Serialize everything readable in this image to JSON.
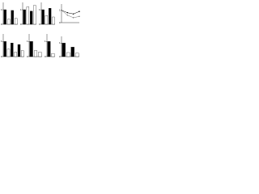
{
  "chart_data": [
    {
      "type": "bar",
      "values": [
        1.0,
        0.35,
        0.95,
        0.4
      ],
      "colors": [
        "#000000",
        "#ffffff",
        "#000000",
        "#ffffff"
      ],
      "ylim": [
        0,
        1.5
      ],
      "yticks": [
        0,
        1
      ]
    },
    {
      "type": "bar",
      "values": [
        1.0,
        1.2,
        0.9,
        1.3
      ],
      "colors": [
        "#000000",
        "#ffffff",
        "#000000",
        "#ffffff"
      ],
      "ylim": [
        0,
        1.5
      ],
      "yticks": [
        0,
        1
      ]
    },
    {
      "type": "bar",
      "values": [
        1.0,
        0.6,
        1.1,
        0.5
      ],
      "colors": [
        "#000000",
        "#ffffff",
        "#000000",
        "#ffffff"
      ],
      "ylim": [
        0,
        1.5
      ],
      "yticks": [
        0,
        1
      ]
    },
    {
      "type": "line",
      "x": [
        0,
        1,
        2,
        3
      ],
      "series": [
        {
          "color": "#000000",
          "values": [
            1.0,
            0.8,
            0.7,
            0.9
          ]
        },
        {
          "color": "#777777",
          "values": [
            1.0,
            0.6,
            0.4,
            0.5
          ]
        }
      ],
      "xlim": [
        0,
        3
      ],
      "ylim": [
        0,
        1.5
      ],
      "yticks": [
        0,
        1
      ]
    },
    {
      "type": "bar",
      "values": [
        1.0,
        0.5,
        0.9,
        0.3,
        0.8,
        0.4
      ],
      "colors": [
        "#000000",
        "#ffffff",
        "#000000",
        "#ffffff",
        "#000000",
        "#ffffff"
      ],
      "ylim": [
        0,
        1.5
      ],
      "yticks": [
        0,
        1
      ]
    },
    {
      "type": "bar",
      "values": [
        1.0,
        0.4,
        0.3
      ],
      "colors": [
        "#000000",
        "#ffffff",
        "#ffffff"
      ],
      "ylim": [
        0,
        1.5
      ],
      "yticks": [
        0,
        1
      ]
    },
    {
      "type": "bar",
      "values": [
        1.0,
        0.2
      ],
      "colors": [
        "#000000",
        "#ffffff"
      ],
      "ylim": [
        0,
        1.5
      ],
      "yticks": [
        0,
        1
      ]
    },
    {
      "type": "bar",
      "values": [
        1.0,
        0.3,
        0.7,
        0.25
      ],
      "colors": [
        "#000000",
        "#ffffff",
        "#000000",
        "#ffffff"
      ],
      "ylim": [
        0,
        1.5
      ],
      "yticks": [
        0,
        1
      ]
    }
  ]
}
